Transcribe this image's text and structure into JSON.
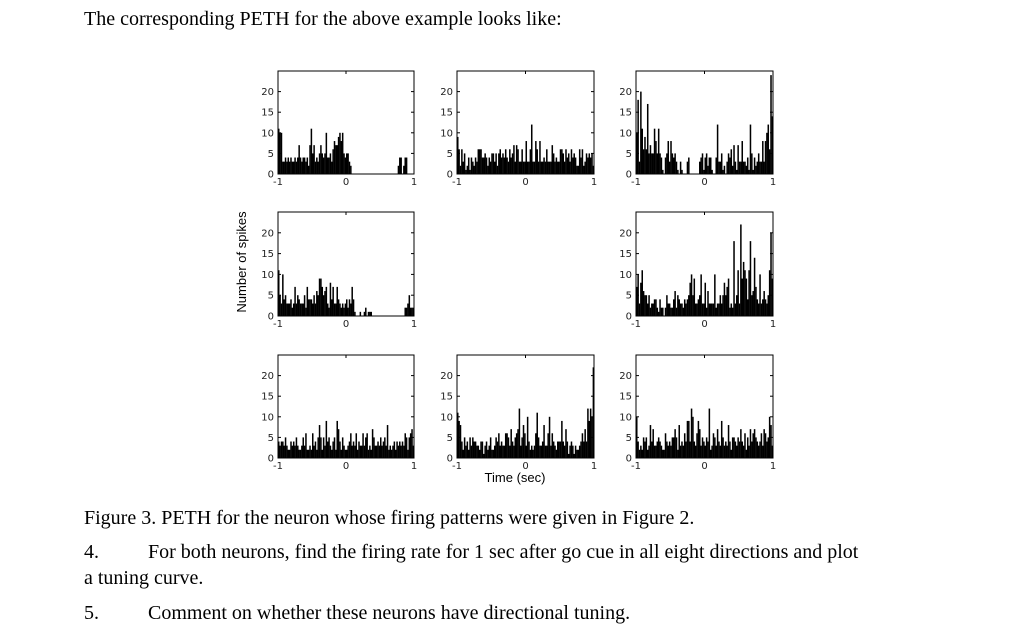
{
  "document": {
    "intro": "The corresponding PETH for the above example looks like:",
    "caption": "Figure 3. PETH for the neuron whose firing patterns were given in Figure 2.",
    "items": [
      {
        "number": "4.",
        "line1": "For both neurons, find the firing rate for 1 sec after go cue in all eight directions and plot",
        "line2": "a tuning curve."
      },
      {
        "number": "5.",
        "line1": "Comment on whether these neurons have directional tuning."
      }
    ]
  },
  "chart_data": {
    "type": "bar",
    "subtype": "peri-event time histogram grid",
    "ylabel": "Number of spikes",
    "xlabel": "Time (sec)",
    "xlim": [
      -1,
      1
    ],
    "ylim": [
      0,
      25
    ],
    "xticks": [
      -1,
      0,
      1
    ],
    "yticks": [
      0,
      5,
      10,
      15,
      20
    ],
    "layout": "3x3 grid, center panel empty",
    "panels": [
      {
        "position": "top-left",
        "values": [
          11,
          10,
          10,
          3,
          3,
          4,
          3,
          4,
          3,
          4,
          3,
          3,
          4,
          3,
          4,
          7,
          4,
          3,
          4,
          4,
          3,
          4,
          2,
          7,
          11,
          5,
          7,
          3,
          4,
          3,
          5,
          7,
          5,
          4,
          5,
          10,
          4,
          4,
          5,
          3,
          6,
          8,
          7,
          7,
          9,
          10,
          8,
          10,
          5,
          4,
          5,
          5,
          3,
          2,
          0,
          0,
          0,
          0,
          0,
          0,
          0,
          0,
          0,
          0,
          0,
          0,
          0,
          0,
          0,
          0,
          0,
          0,
          0,
          0,
          0,
          0,
          0,
          0,
          0,
          0,
          0,
          0,
          0,
          0,
          0,
          0,
          0,
          0,
          2,
          4,
          4,
          0,
          2,
          4,
          4,
          0,
          0,
          0,
          0,
          0
        ]
      },
      {
        "position": "top-center",
        "values": [
          9,
          6,
          2,
          6,
          3,
          5,
          1,
          2,
          4,
          1,
          4,
          3,
          2,
          4,
          3,
          6,
          6,
          6,
          4,
          4,
          5,
          4,
          2,
          4,
          3,
          5,
          5,
          3,
          5,
          2,
          5,
          6,
          4,
          5,
          4,
          6,
          4,
          3,
          6,
          4,
          5,
          7,
          3,
          7,
          6,
          3,
          3,
          6,
          3,
          3,
          8,
          3,
          3,
          6,
          12,
          3,
          3,
          8,
          6,
          3,
          8,
          3,
          3,
          4,
          3,
          6,
          3,
          3,
          3,
          7,
          5,
          3,
          4,
          3,
          3,
          6,
          6,
          5,
          3,
          6,
          4,
          5,
          3,
          6,
          4,
          5,
          4,
          2,
          2,
          6,
          4,
          6,
          2,
          3,
          5,
          4,
          5,
          4,
          5,
          2
        ]
      },
      {
        "position": "top-right",
        "values": [
          10,
          18,
          3,
          20,
          11,
          6,
          9,
          6,
          17,
          5,
          7,
          5,
          5,
          11,
          8,
          5,
          11,
          5,
          4,
          1,
          0,
          4,
          5,
          8,
          3,
          8,
          5,
          4,
          5,
          3,
          1,
          0,
          3,
          1,
          0,
          0,
          0,
          3,
          4,
          0,
          0,
          0,
          0,
          0,
          0,
          0,
          3,
          4,
          5,
          1,
          4,
          5,
          2,
          4,
          4,
          1,
          0,
          0,
          4,
          12,
          3,
          3,
          5,
          1,
          2,
          0,
          3,
          5,
          4,
          6,
          2,
          7,
          3,
          1,
          7,
          3,
          3,
          8,
          3,
          3,
          2,
          4,
          1,
          12,
          5,
          1,
          4,
          2,
          3,
          5,
          3,
          3,
          8,
          3,
          8,
          10,
          12,
          6,
          24,
          14
        ]
      },
      {
        "position": "middle-left",
        "values": [
          11,
          5,
          3,
          10,
          4,
          5,
          3,
          3,
          3,
          4,
          2,
          3,
          7,
          3,
          5,
          4,
          3,
          3,
          3,
          5,
          2,
          7,
          4,
          4,
          4,
          3,
          5,
          3,
          6,
          5,
          9,
          9,
          7,
          5,
          6,
          7,
          3,
          2,
          8,
          4,
          7,
          3,
          3,
          7,
          4,
          3,
          2,
          3,
          2,
          3,
          4,
          2,
          4,
          3,
          7,
          4,
          1,
          0,
          0,
          0,
          1,
          0,
          0,
          1,
          2,
          0,
          1,
          1,
          1,
          0,
          0,
          0,
          0,
          0,
          0,
          0,
          0,
          0,
          0,
          0,
          0,
          0,
          0,
          0,
          0,
          0,
          0,
          0,
          0,
          0,
          0,
          0,
          0,
          2,
          2,
          3,
          5,
          2,
          2,
          2
        ]
      },
      {
        "position": "middle-right",
        "values": [
          7,
          10,
          3,
          8,
          11,
          6,
          5,
          5,
          3,
          5,
          2,
          3,
          3,
          4,
          4,
          2,
          1,
          4,
          2,
          2,
          0,
          2,
          5,
          3,
          3,
          2,
          2,
          4,
          6,
          2,
          5,
          4,
          3,
          3,
          2,
          4,
          3,
          4,
          5,
          8,
          10,
          5,
          9,
          3,
          3,
          4,
          5,
          10,
          3,
          3,
          8,
          2,
          6,
          3,
          3,
          3,
          3,
          10,
          2,
          3,
          3,
          5,
          3,
          5,
          8,
          5,
          7,
          9,
          2,
          3,
          2,
          18,
          3,
          5,
          11,
          3,
          22,
          9,
          13,
          11,
          9,
          4,
          11,
          18,
          5,
          6,
          14,
          7,
          4,
          3,
          10,
          3,
          4,
          6,
          4,
          3,
          5,
          11,
          20,
          9
        ]
      },
      {
        "position": "bottom-left",
        "values": [
          4,
          3,
          4,
          4,
          3,
          5,
          3,
          2,
          2,
          4,
          3,
          4,
          3,
          5,
          3,
          2,
          2,
          3,
          5,
          3,
          6,
          2,
          2,
          3,
          2,
          6,
          3,
          4,
          2,
          5,
          8,
          5,
          2,
          5,
          3,
          9,
          4,
          5,
          3,
          2,
          4,
          5,
          2,
          9,
          7,
          4,
          2,
          5,
          3,
          2,
          2,
          3,
          4,
          6,
          3,
          4,
          3,
          6,
          2,
          4,
          3,
          3,
          6,
          3,
          5,
          6,
          2,
          3,
          2,
          7,
          5,
          3,
          3,
          4,
          3,
          5,
          3,
          4,
          5,
          3,
          8,
          2,
          3,
          2,
          3,
          4,
          2,
          4,
          3,
          4,
          3,
          4,
          3,
          6,
          5,
          2,
          5,
          6,
          7,
          3
        ]
      },
      {
        "position": "bottom-center",
        "values": [
          11,
          9,
          8,
          4,
          2,
          5,
          3,
          4,
          2,
          5,
          3,
          5,
          4,
          4,
          3,
          3,
          2,
          4,
          4,
          1,
          3,
          4,
          2,
          3,
          5,
          2,
          2,
          3,
          5,
          4,
          6,
          3,
          4,
          3,
          3,
          6,
          6,
          5,
          3,
          7,
          4,
          3,
          5,
          6,
          7,
          12,
          3,
          5,
          8,
          6,
          3,
          10,
          4,
          2,
          3,
          2,
          3,
          6,
          11,
          5,
          3,
          3,
          4,
          8,
          3,
          3,
          6,
          10,
          3,
          6,
          4,
          3,
          2,
          4,
          4,
          4,
          9,
          4,
          3,
          7,
          4,
          1,
          3,
          4,
          3,
          1,
          3,
          2,
          2,
          3,
          4,
          6,
          4,
          7,
          4,
          12,
          9,
          12,
          10,
          22
        ]
      },
      {
        "position": "bottom-right",
        "values": [
          10,
          4,
          2,
          3,
          2,
          5,
          4,
          5,
          2,
          3,
          8,
          4,
          7,
          3,
          3,
          4,
          5,
          4,
          3,
          2,
          2,
          6,
          4,
          3,
          4,
          3,
          5,
          5,
          7,
          5,
          2,
          8,
          3,
          4,
          3,
          6,
          4,
          9,
          9,
          4,
          12,
          10,
          4,
          3,
          6,
          9,
          7,
          3,
          5,
          4,
          3,
          5,
          4,
          12,
          2,
          3,
          6,
          5,
          3,
          7,
          4,
          3,
          9,
          5,
          3,
          4,
          3,
          8,
          4,
          2,
          5,
          5,
          4,
          3,
          5,
          4,
          7,
          4,
          3,
          6,
          2,
          5,
          3,
          7,
          4,
          6,
          7,
          5,
          4,
          3,
          4,
          6,
          3,
          7,
          6,
          4,
          5,
          10,
          8,
          3
        ]
      }
    ]
  }
}
